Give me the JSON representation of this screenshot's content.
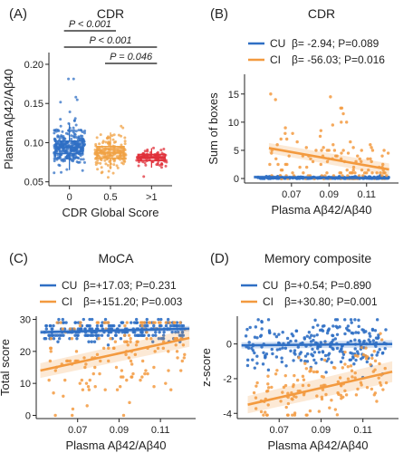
{
  "colors": {
    "cu": "#2f6fc4",
    "ci": "#f39a3f",
    "box0": "#2f6fc4",
    "box1": "#f0a244",
    "box2": "#e0303a",
    "sig": "#111111"
  },
  "chart_data": [
    {
      "id": "A",
      "panel_label": "(A)",
      "type": "box",
      "title": "CDR",
      "xlabel": "CDR Global Score",
      "ylabel": "Plasma Aβ42/Aβ40",
      "categories": [
        "0",
        "0.5",
        ">1"
      ],
      "ylim": [
        0.045,
        0.215
      ],
      "yticks": [
        0.05,
        0.1,
        0.15,
        0.2
      ],
      "ytick_labels": [
        "0.05",
        "0.10",
        "0.15",
        "0.20"
      ],
      "boxes": [
        {
          "category": "0",
          "min": 0.065,
          "q1": 0.086,
          "median": 0.094,
          "q3": 0.102,
          "max": 0.125
        },
        {
          "category": "0.5",
          "min": 0.066,
          "q1": 0.08,
          "median": 0.087,
          "q3": 0.095,
          "max": 0.113
        },
        {
          "category": ">1",
          "min": 0.068,
          "q1": 0.077,
          "median": 0.081,
          "q3": 0.085,
          "max": 0.093
        }
      ],
      "significance": [
        {
          "from": "0",
          "to": "0.5",
          "label": "P < 0.001"
        },
        {
          "from": "0",
          "to": ">1",
          "label": "P < 0.001"
        },
        {
          "from": "0.5",
          "to": ">1",
          "label": "P = 0.046"
        }
      ]
    },
    {
      "id": "B",
      "panel_label": "(B)",
      "type": "scatter",
      "title": "CDR",
      "xlabel": "Plasma Aβ42/Aβ40",
      "ylabel": "Sum of boxes",
      "xlim": [
        0.045,
        0.127
      ],
      "ylim": [
        -0.8,
        18.5
      ],
      "xticks": [
        0.07,
        0.09,
        0.11
      ],
      "xtick_labels": [
        "0.07",
        "0.09",
        "0.11"
      ],
      "yticks": [
        0,
        5,
        10,
        15
      ],
      "ytick_labels": [
        "0",
        "5",
        "10",
        "15"
      ],
      "legend": "top",
      "series": [
        {
          "name": "CU",
          "stat": "β= -2.94; P=0.089",
          "fit": {
            "x": [
              0.05,
              0.122
            ],
            "y": [
              0.25,
              0.05
            ]
          },
          "band": 0.3
        },
        {
          "name": "CI",
          "stat": "β= -56.03; P=0.016",
          "fit": {
            "x": [
              0.058,
              0.122
            ],
            "y": [
              5.4,
              1.6
            ]
          },
          "band": 0.9
        }
      ]
    },
    {
      "id": "C",
      "panel_label": "(C)",
      "type": "scatter",
      "title": "MoCA",
      "xlabel": "Plasma Aβ42/Aβ40",
      "ylabel": "Total score",
      "xlim": [
        0.05,
        0.127
      ],
      "ylim": [
        -1,
        31
      ],
      "xticks": [
        0.07,
        0.09,
        0.11
      ],
      "xtick_labels": [
        "0.07",
        "0.09",
        "0.11"
      ],
      "yticks": [
        0,
        10,
        20,
        30
      ],
      "ytick_labels": [
        "0",
        "10",
        "20",
        "30"
      ],
      "legend": "top",
      "series": [
        {
          "name": "CU",
          "stat": "β=+17.03; P=0.231",
          "fit": {
            "x": [
              0.052,
              0.124
            ],
            "y": [
              26.0,
              27.1
            ]
          },
          "band": 0.7
        },
        {
          "name": "CI",
          "stat": "β=+151.20; P=0.003",
          "fit": {
            "x": [
              0.052,
              0.124
            ],
            "y": [
              14.0,
              24.2
            ]
          },
          "band": 2.3
        }
      ]
    },
    {
      "id": "D",
      "panel_label": "(D)",
      "type": "scatter",
      "title": "Memory composite",
      "xlabel": "Plasma Aβ42/Aβ40",
      "ylabel": "z-score",
      "xlim": [
        0.05,
        0.127
      ],
      "ylim": [
        -4.3,
        1.6
      ],
      "xticks": [
        0.07,
        0.09,
        0.11
      ],
      "xtick_labels": [
        "0.07",
        "0.09",
        "0.11"
      ],
      "yticks": [
        -4,
        -2,
        0
      ],
      "ytick_labels": [
        "-4",
        "-2",
        "0"
      ],
      "legend": "top",
      "series": [
        {
          "name": "CU",
          "stat": "β=+0.54; P=0.890",
          "fit": {
            "x": [
              0.052,
              0.124
            ],
            "y": [
              -0.08,
              0.0
            ]
          },
          "band": 0.18
        },
        {
          "name": "CI",
          "stat": "β=+30.80; P=0.001",
          "fit": {
            "x": [
              0.055,
              0.124
            ],
            "y": [
              -3.5,
              -1.6
            ]
          },
          "band": 0.5
        }
      ]
    }
  ]
}
